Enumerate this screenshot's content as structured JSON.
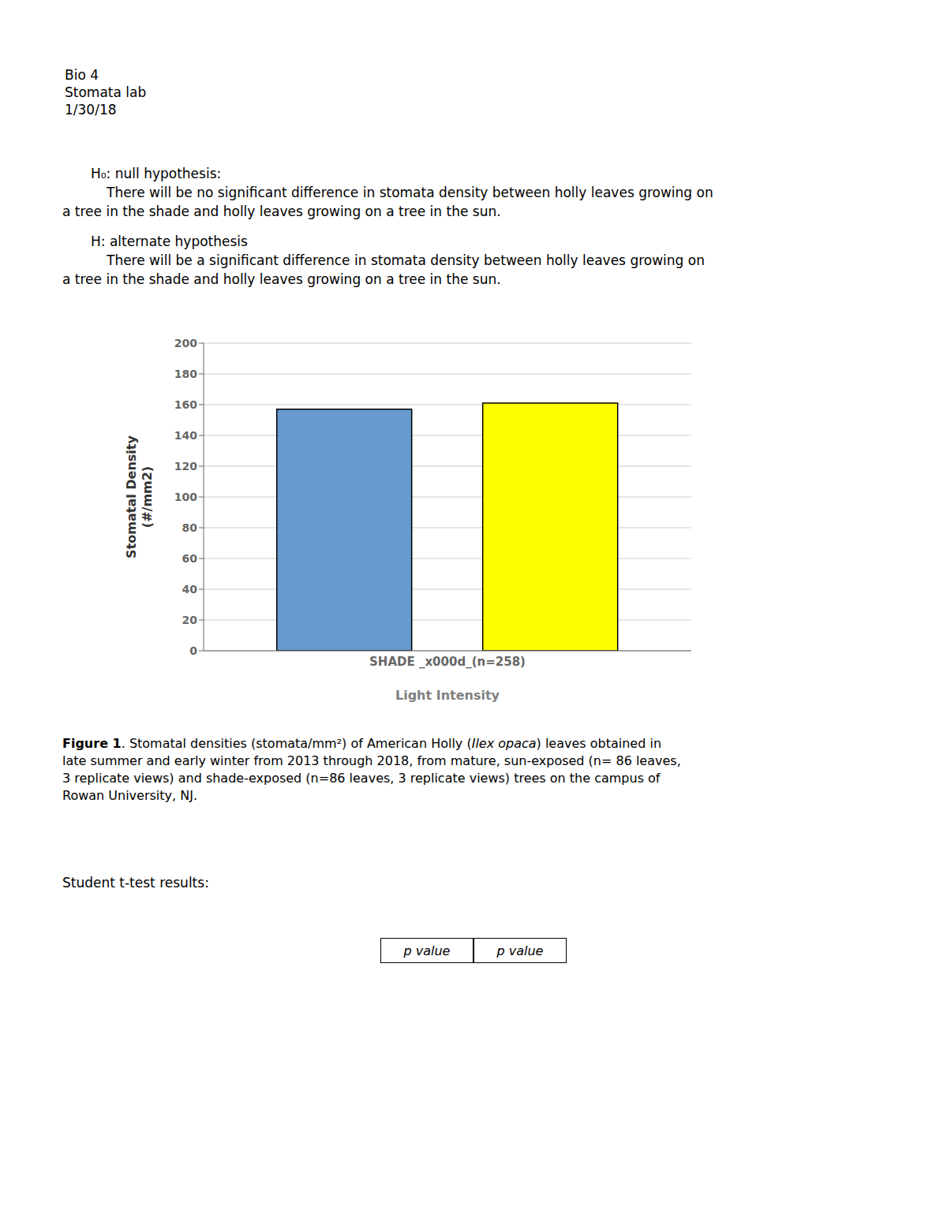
{
  "chart_data": {
    "type": "bar",
    "categories": [
      "SHADE _x000d_(n=258)"
    ],
    "series": [
      {
        "color": "#6699CC",
        "values": [
          157
        ]
      },
      {
        "color": "#FFFF00",
        "values": [
          161
        ]
      }
    ],
    "xlabel": "Light Intensity",
    "ylabel": "Stomatal Density\n(#/mm2)",
    "ylim": [
      0,
      200
    ],
    "yticks": [
      0,
      20,
      40,
      60,
      80,
      100,
      120,
      140,
      160,
      180,
      200
    ],
    "grid": true,
    "annotations": [
      "Bio 4",
      "Stomata lab",
      "1/30/18",
      "H₀: null hypothesis:",
      "There will be no significant difference in stomata density between holly leaves growing on",
      "a tree in the shade and holly leaves growing on a tree in the sun.",
      "H⁡: alternate hypothesis",
      "There will be a significant difference in stomata density between holly leaves growing on",
      "a tree in the shade and holly leaves growing on a tree in the sun.",
      "Figure 1",
      ". Stomatal densities (stomata/mm²) of American Holly (",
      "Ilex opaca",
      ") leaves obtained in",
      "late summer and early winter from 2013 through 2018, from mature, sun-exposed (n= 86 leaves,",
      "3 replicate views) and shade-exposed (n=86 leaves, 3 replicate views) trees on the campus of",
      "Rowan University, NJ.",
      "Student t-test results:",
      "p value",
      "p value"
    ]
  }
}
